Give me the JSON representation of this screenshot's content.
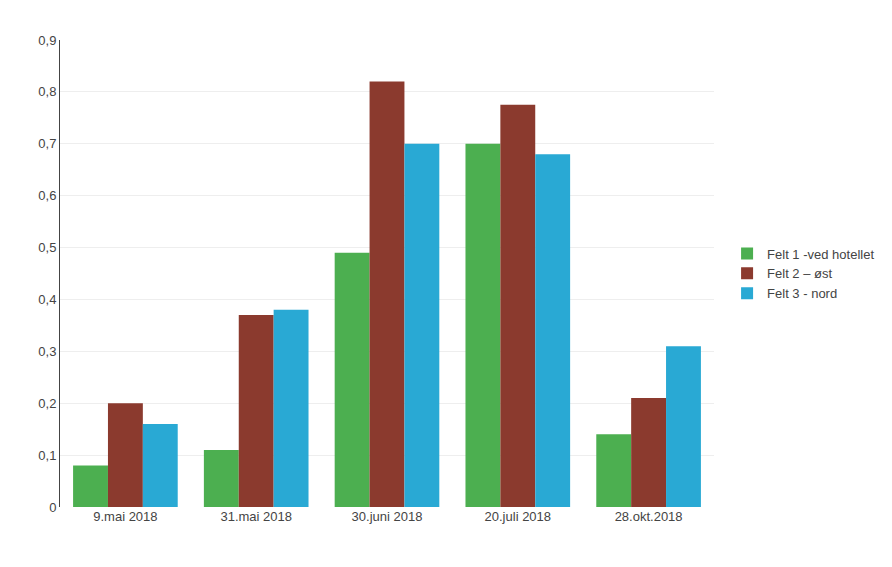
{
  "chart_data": {
    "type": "bar",
    "categories": [
      "9.mai 2018",
      "31.mai 2018",
      "30.juni 2018",
      "20.juli 2018",
      "28.okt.2018"
    ],
    "series": [
      {
        "name": "Felt 1 -ved hotellet",
        "color": "#4caf50",
        "values": [
          0.08,
          0.11,
          0.49,
          0.7,
          0.14
        ]
      },
      {
        "name": "Felt 2 – øst",
        "color": "#8b3a2e",
        "values": [
          0.2,
          0.37,
          0.82,
          0.775,
          0.21
        ]
      },
      {
        "name": "Felt 3 - nord",
        "color": "#29a9d4",
        "values": [
          0.16,
          0.38,
          0.7,
          0.68,
          0.31
        ]
      }
    ],
    "ylim": [
      0,
      0.9
    ],
    "yticks": [
      0,
      {
        "value": 0.1,
        "label": "0,1"
      },
      {
        "value": 0.2,
        "label": "0,2"
      },
      {
        "value": 0.3,
        "label": "0,3"
      },
      {
        "value": 0.4,
        "label": "0,4"
      },
      {
        "value": 0.5,
        "label": "0,5"
      },
      {
        "value": 0.6,
        "label": "0,6"
      },
      {
        "value": 0.7,
        "label": "0,7"
      },
      {
        "value": 0.8,
        "label": "0,8"
      },
      {
        "value": 0.9,
        "label": "0,9"
      }
    ],
    "grid": true,
    "legend": "right"
  }
}
